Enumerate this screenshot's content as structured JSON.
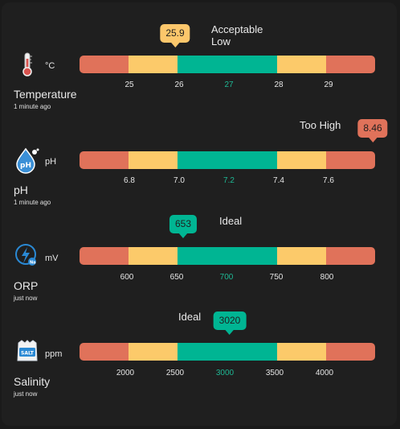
{
  "colors": {
    "red": "#e0725a",
    "yellow": "#fcca6a",
    "green": "#00b593",
    "mid_tick": "#1fb894",
    "badge_green": "#00b593",
    "badge_yellow": "#fcc76b",
    "badge_red": "#e0725a"
  },
  "sensors": [
    {
      "icon": "thermometer-icon",
      "unit": "°C",
      "name": "Temperature",
      "updated": "1 minute ago",
      "status": "Acceptable Low",
      "value": "25.9",
      "value_num": 25.9,
      "badge_color": "yellow",
      "ticks": [
        "25",
        "26",
        "27",
        "28",
        "29"
      ],
      "tick_values": [
        25,
        26,
        27,
        28,
        29
      ]
    },
    {
      "icon": "ph-drop-icon",
      "unit": "pH",
      "name": "pH",
      "updated": "1 minute ago",
      "status": "Too High",
      "value": "8.46",
      "value_num": 8.46,
      "badge_color": "red",
      "ticks": [
        "6.8",
        "7.0",
        "7.2",
        "7.4",
        "7.6"
      ],
      "tick_values": [
        6.8,
        7.0,
        7.2,
        7.4,
        7.6
      ]
    },
    {
      "icon": "orp-icon",
      "unit": "mV",
      "name": "ORP",
      "updated": "just now",
      "status": "Ideal",
      "value": "653",
      "value_num": 653,
      "badge_color": "green",
      "ticks": [
        "600",
        "650",
        "700",
        "750",
        "800"
      ],
      "tick_values": [
        600,
        650,
        700,
        750,
        800
      ]
    },
    {
      "icon": "salt-bag-icon",
      "unit": "ppm",
      "name": "Salinity",
      "updated": "just now",
      "status": "Ideal",
      "value": "3020",
      "value_num": 3020,
      "badge_color": "green",
      "ticks": [
        "2000",
        "2500",
        "3000",
        "3500",
        "4000"
      ],
      "tick_values": [
        2000,
        2500,
        3000,
        3500,
        4000
      ]
    }
  ]
}
